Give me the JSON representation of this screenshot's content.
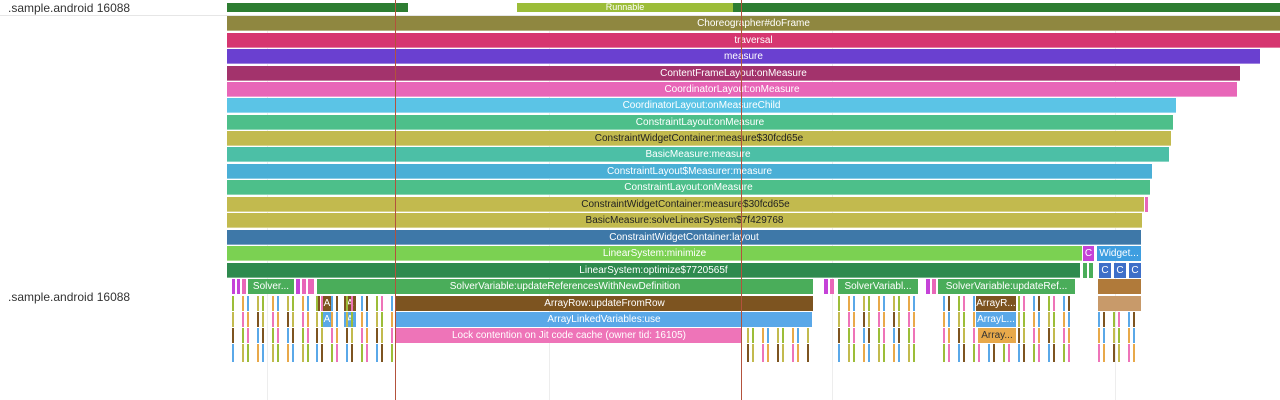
{
  "tracks": {
    "thread_state_label": ".sample.android 16088",
    "slices_label": ".sample.android 16088"
  },
  "thread_state": {
    "runnable_label": "Runnable"
  },
  "slices": {
    "choreographer": "Choreographer#doFrame",
    "traversal": "traversal",
    "measure": "measure",
    "content_frame": "ContentFrameLayout:onMeasure",
    "coordinator_layout": "CoordinatorLayout:onMeasure",
    "coordinator_child": "CoordinatorLayout:onMeasureChild",
    "constraint_layout_1": "ConstraintLayout:onMeasure",
    "widget_container_1": "ConstraintWidgetContainer:measure$30fcd65e",
    "basic_measure": "BasicMeasure:measure",
    "measurer": "ConstraintLayout$Measurer:measure",
    "constraint_layout_2": "ConstraintLayout:onMeasure",
    "widget_container_2": "ConstraintWidgetContainer:measure$30fcd65e",
    "solve_linear": "BasicMeasure:solveLinearSystem$7f429768",
    "container_layout": "ConstraintWidgetContainer:layout",
    "minimize": "LinearSystem:minimize",
    "optimize": "LinearSystem:optimize$7720565f",
    "solver_short": "Solver...",
    "update_refs": "SolverVariable:updateReferencesWithNewDefinition",
    "solver_var_mid": "SolverVariabl...",
    "solver_update_ref": "SolverVariable:updateRef...",
    "array_row": "ArrayRow:updateFromRow",
    "array_row_short": "ArrayR...",
    "linked_vars": "ArrayLinkedVariables:use",
    "linked_short": "ArrayL...",
    "lock": "Lock contention on Jit code cache (owner tid: 16105)",
    "array_dots": "Array...",
    "widget_short": "Widget...",
    "c": "C",
    "a": "A"
  },
  "colors": {
    "thread_running": "#2e7d32",
    "thread_runnable": "#9cbd39",
    "choreographer": "#8f8740",
    "traversal": "#d63670",
    "measure": "#6a40d0",
    "content_frame": "#a3336c",
    "coordinator_layout": "#e866b8",
    "coordinator_child": "#5bc4e6",
    "constraint_layout": "#4dbf8a",
    "widget_container": "#c2ba4e",
    "basic_measure": "#4cbfa6",
    "measurer": "#4aafd6",
    "container_layout": "#3e78a8",
    "minimize": "#7bd152",
    "optimize": "#2e8a4e",
    "solver_var": "#4aad5a",
    "array_row": "#7d5420",
    "linked_vars": "#5aa8e8",
    "lock": "#ee74b8",
    "array_orange": "#e8a94a"
  }
}
